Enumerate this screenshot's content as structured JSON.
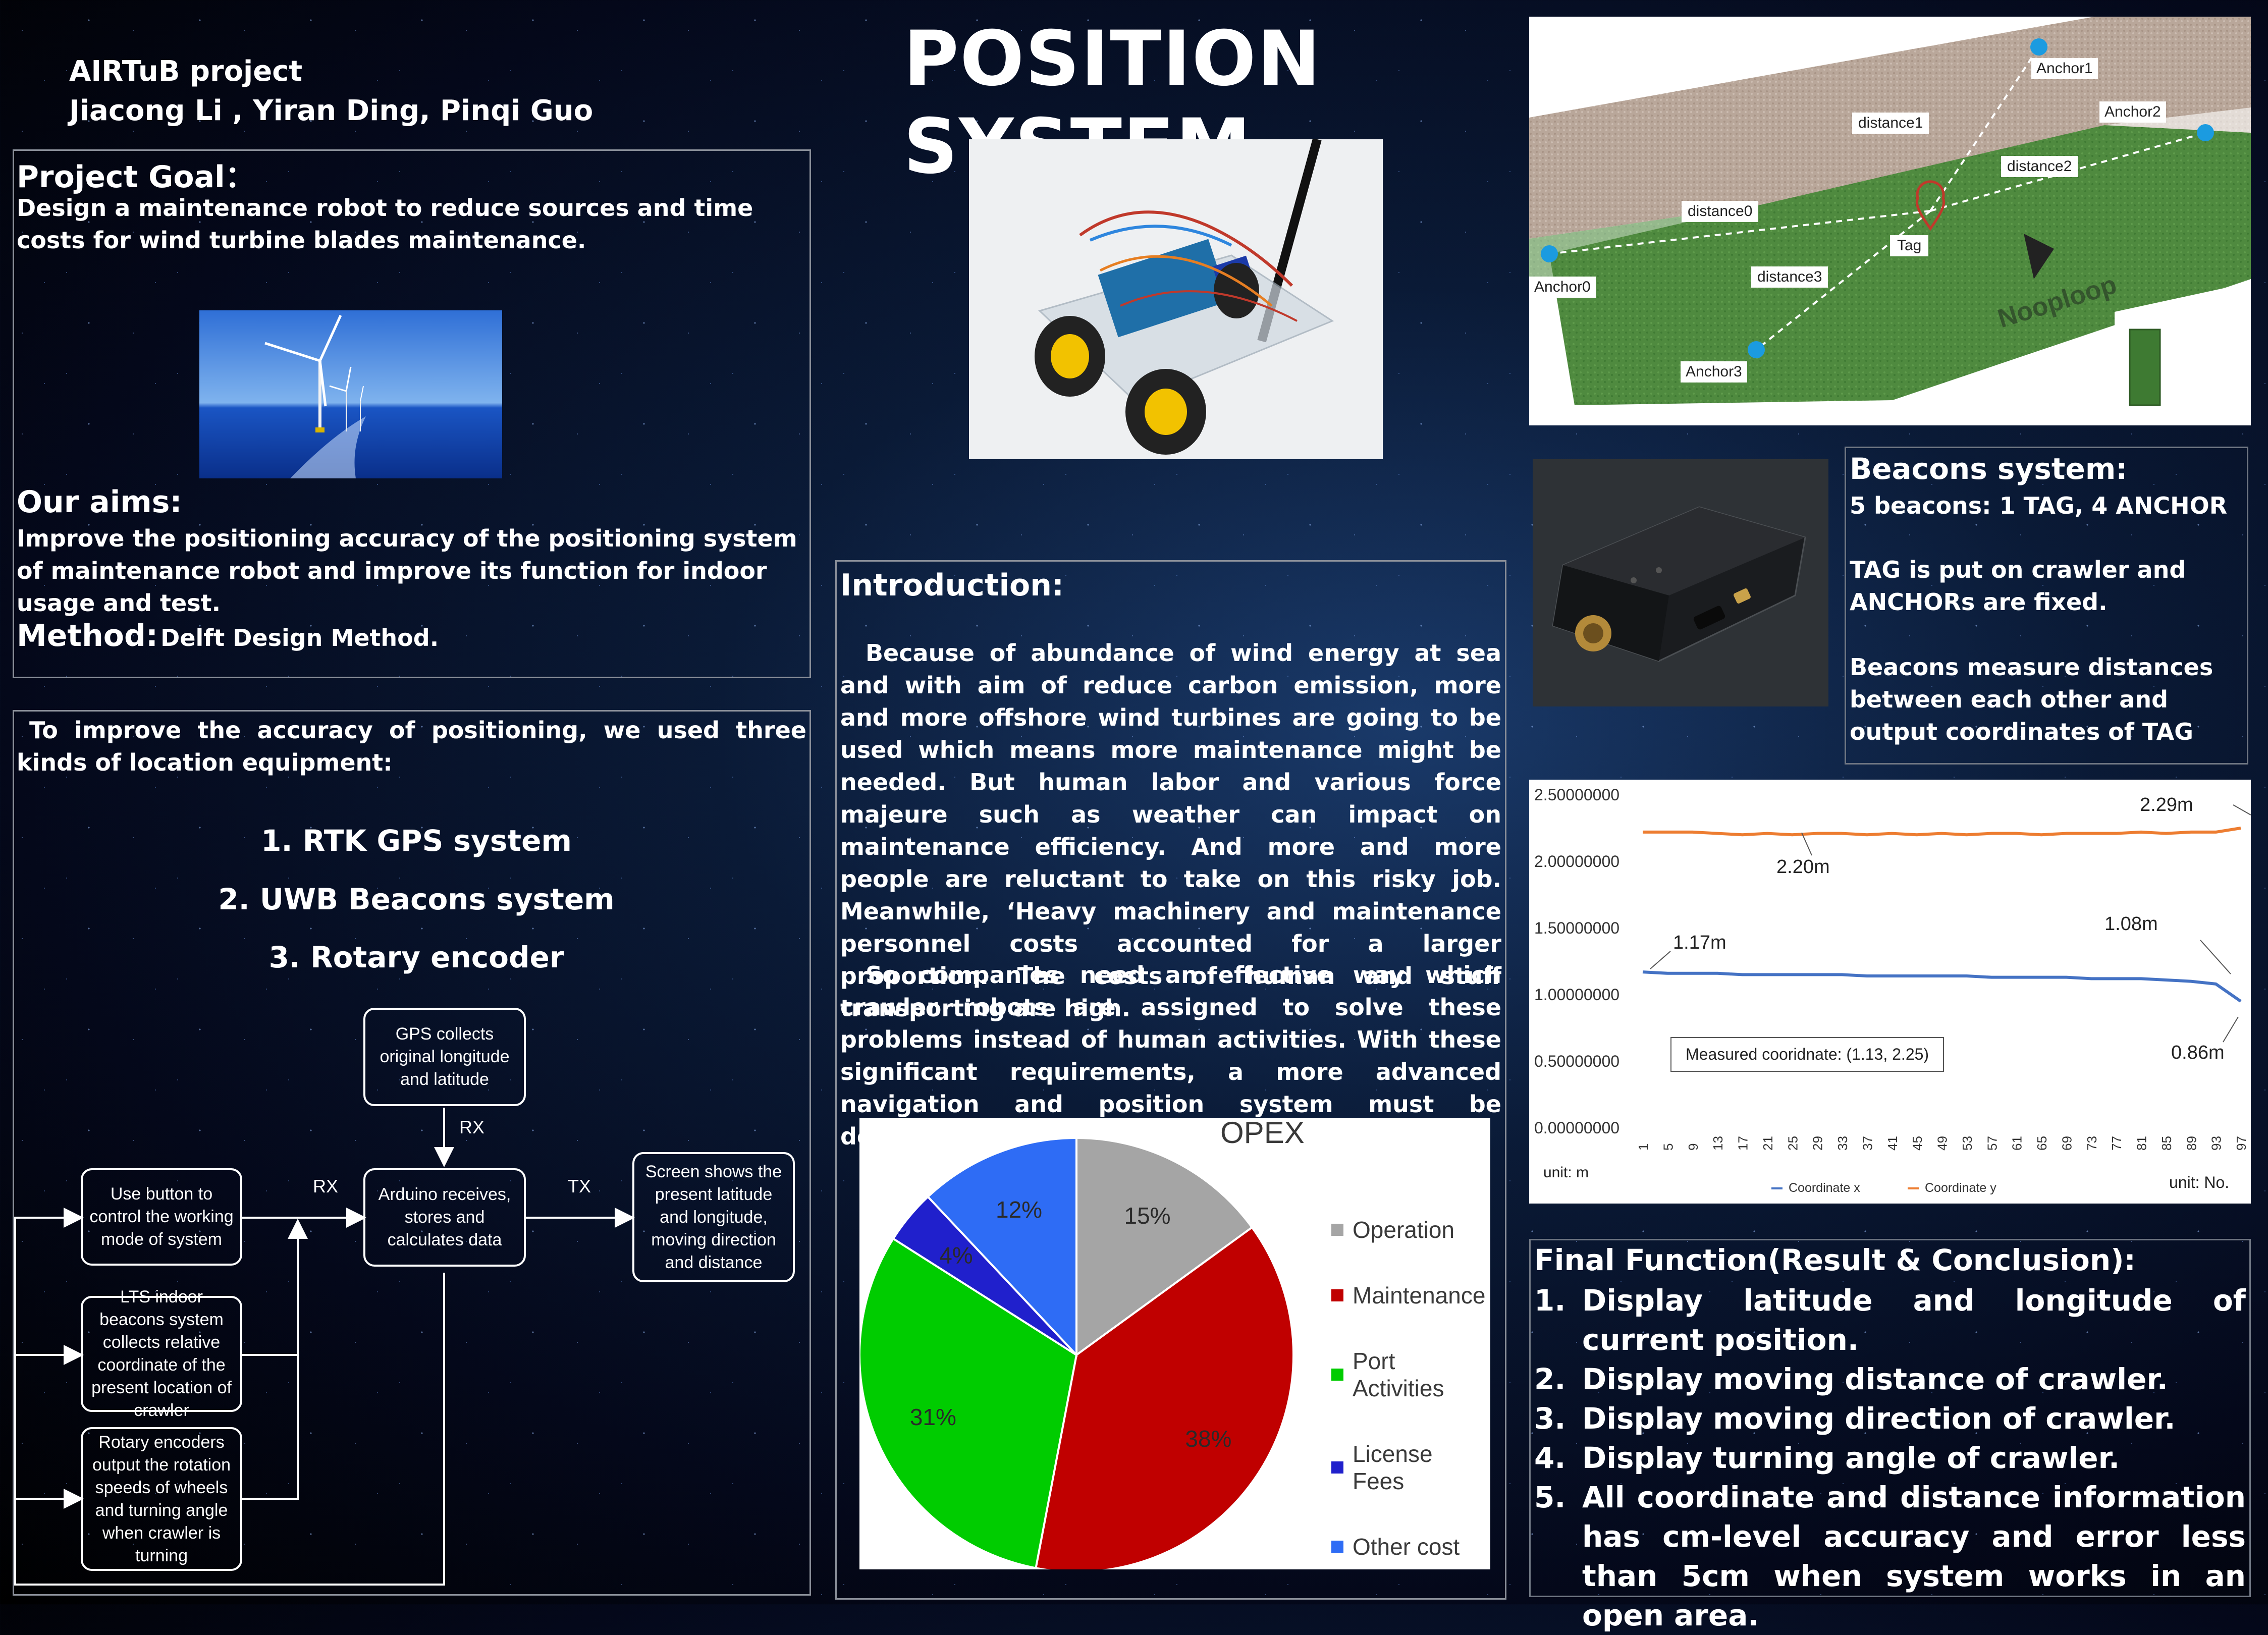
{
  "header": {
    "project": "AIRTuB project",
    "authors": "Jiacong Li , Yiran Ding, Pinqi Guo",
    "title": "POSITION SYSTEM"
  },
  "goal": {
    "heading": "Project Goal：",
    "text": "Design  a maintenance robot to reduce sources and time costs for wind turbine blades maintenance.",
    "aims_heading": "Our aims:",
    "aims_text": "Improve the positioning accuracy of the positioning system of maintenance robot and improve its function for indoor usage and test.",
    "method_heading": "Method:",
    "method_text": "Delft Design Method."
  },
  "equipment": {
    "intro": "To improve the accuracy of positioning, we used three kinds of location equipment:",
    "items": [
      "1. RTK GPS system",
      "2. UWB Beacons system",
      "3. Rotary encoder"
    ]
  },
  "flowchart": {
    "gps": "GPS collects original longitude and latitude",
    "button": "Use button to control the working mode of system",
    "arduino": "Arduino receives, stores and calculates data",
    "screen": "Screen shows the present latitude and longitude, moving direction and distance",
    "lts": "LTS indoor beacons system collects relative coordinate of the present location of crawler",
    "rotary": "Rotary encoders output the rotation speeds of wheels and turning angle when crawler is turning",
    "rx_top": "RX",
    "rx_left": "RX",
    "tx": "TX"
  },
  "introduction": {
    "heading": "Introduction:",
    "p1": "Because of abundance of wind energy at sea and with aim of reduce carbon emission, more and more offshore wind turbines are going to be used which means more maintenance might be needed. But human labor and various force majeure such as weather can impact on maintenance efficiency. And more and more people are reluctant to take on this risky job. Meanwhile, ‘Heavy machinery and maintenance personnel costs accounted for a larger proportion. The costs of human and stuff transporting are high.",
    "p2": "So companies need an effective way which crawler robots are assigned to solve these problems instead of human activities. With these significant requirements, a more advanced navigation and position system must be designed."
  },
  "opex": {
    "title": "OPEX",
    "legend": [
      "Operation",
      "Maintenance",
      "Port Activities",
      "License Fees",
      "Other cost"
    ],
    "colors": [
      "#a5a5a5",
      "#c00000",
      "#00cc00",
      "#2020cc",
      "#2e6cf5"
    ],
    "values": [
      15,
      38,
      31,
      4,
      12
    ],
    "labels": [
      "15%",
      "38%",
      "31%",
      "4%",
      "12%"
    ]
  },
  "beacon_diagram": {
    "anchors": [
      "Anchor0",
      "Anchor1",
      "Anchor2",
      "Anchor3"
    ],
    "distances": [
      "distance0",
      "distance1",
      "distance2",
      "distance3"
    ],
    "tag": "Tag",
    "brand": "Nooploop"
  },
  "beacons": {
    "heading": "Beacons system:",
    "line1": "5 beacons: 1 TAG, 4 ANCHOR",
    "line2": "TAG is put on crawler and ANCHORs are fixed.",
    "line3": "Beacons measure distances between each other and output coordinates of TAG"
  },
  "chart_data": {
    "type": "line",
    "x": [
      1,
      5,
      9,
      13,
      17,
      21,
      25,
      29,
      33,
      37,
      41,
      45,
      49,
      53,
      57,
      61,
      65,
      69,
      73,
      77,
      81,
      85,
      89,
      93,
      97
    ],
    "series": [
      {
        "name": "Coordinate x",
        "color": "#4472c4",
        "values": [
          1.17,
          1.16,
          1.16,
          1.16,
          1.15,
          1.15,
          1.15,
          1.15,
          1.15,
          1.14,
          1.14,
          1.14,
          1.14,
          1.14,
          1.13,
          1.13,
          1.13,
          1.13,
          1.12,
          1.12,
          1.12,
          1.11,
          1.1,
          1.08,
          0.95
        ]
      },
      {
        "name": "Coordinate y",
        "color": "#ed7d31",
        "values": [
          2.22,
          2.22,
          2.22,
          2.21,
          2.2,
          2.21,
          2.2,
          2.21,
          2.21,
          2.2,
          2.21,
          2.2,
          2.21,
          2.2,
          2.21,
          2.21,
          2.2,
          2.21,
          2.21,
          2.21,
          2.22,
          2.21,
          2.22,
          2.22,
          2.25
        ]
      }
    ],
    "ylim": [
      0,
      2.5
    ],
    "yticks": [
      "0.00000000",
      "0.50000000",
      "1.00000000",
      "1.50000000",
      "2.00000000",
      "2.50000000"
    ],
    "annotations": [
      "2.29m",
      "2.20m",
      "1.17m",
      "1.08m",
      "0.86m"
    ],
    "box_label": "Measured cooridnate: (1.13, 2.25)",
    "unit_y": "unit: m",
    "unit_x": "unit: No.",
    "xtick_labels": [
      "1",
      "5",
      "9",
      "13",
      "17",
      "21",
      "25",
      "29",
      "33",
      "37",
      "41",
      "45",
      "49",
      "53",
      "57",
      "61",
      "65",
      "69",
      "73",
      "77",
      "81",
      "85",
      "89",
      "93",
      "97"
    ]
  },
  "final": {
    "heading": "Final Function(Result & Conclusion):",
    "items": [
      {
        "n": "1.",
        "t": "Display latitude and longitude of current position."
      },
      {
        "n": "2.",
        "t": "Display moving distance of crawler."
      },
      {
        "n": "3.",
        "t": "Display moving direction of crawler."
      },
      {
        "n": "4.",
        "t": "Display turning angle of crawler."
      },
      {
        "n": "5.",
        "t": "All coordinate and distance information has cm-level accuracy and error less than 5cm when system works in an open area."
      }
    ]
  }
}
